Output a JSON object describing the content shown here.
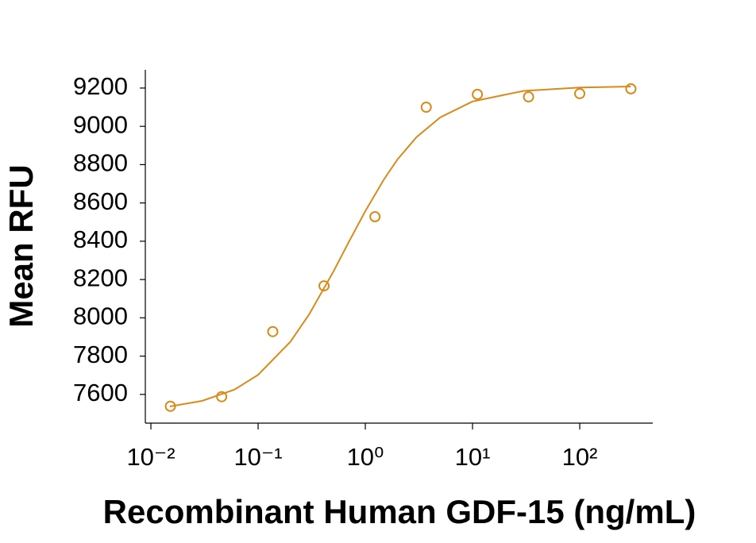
{
  "chart_data": {
    "type": "scatter",
    "x_label": "Recombinant Human GDF-15 (ng/mL)",
    "y_label": "Mean RFU",
    "x_scale": "log",
    "xlim": [
      0.00887,
      480
    ],
    "ylim": [
      7450,
      9295
    ],
    "xticks": [
      {
        "value": 0.01,
        "label": "10⁻²"
      },
      {
        "value": 0.1,
        "label": "10⁻¹"
      },
      {
        "value": 1,
        "label": "10⁰"
      },
      {
        "value": 10,
        "label": "10¹"
      },
      {
        "value": 100,
        "label": "10²"
      }
    ],
    "yticks": [
      7600,
      7800,
      8000,
      8200,
      8400,
      8600,
      8800,
      9000,
      9200
    ],
    "series": [
      {
        "color": "#d98a1a",
        "x": [
          0.0152,
          0.0457,
          0.137,
          0.412,
          1.23,
          3.7,
          11.1,
          33.3,
          100,
          300
        ],
        "values": [
          7538,
          7588,
          7928,
          8167,
          8528,
          9100,
          9167,
          9154,
          9171,
          9196
        ]
      }
    ],
    "fit": {
      "color": "#d98a1a",
      "x": [
        0.015,
        0.03,
        0.06,
        0.1,
        0.2,
        0.3,
        0.5,
        0.7,
        1,
        1.5,
        2,
        3,
        5,
        10,
        30,
        100,
        300
      ],
      "values": [
        7537,
        7566,
        7625,
        7702,
        7875,
        8019,
        8238,
        8395,
        8557,
        8725,
        8828,
        8943,
        9047,
        9130,
        9185,
        9203,
        9208
      ]
    }
  }
}
